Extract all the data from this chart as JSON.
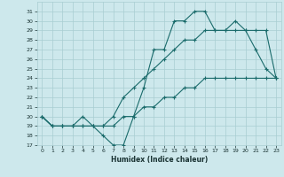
{
  "xlabel": "Humidex (Indice chaleur)",
  "xlim": [
    -0.5,
    23.5
  ],
  "ylim": [
    17,
    32
  ],
  "yticks": [
    17,
    18,
    19,
    20,
    21,
    22,
    23,
    24,
    25,
    26,
    27,
    28,
    29,
    30,
    31
  ],
  "xticks": [
    0,
    1,
    2,
    3,
    4,
    5,
    6,
    7,
    8,
    9,
    10,
    11,
    12,
    13,
    14,
    15,
    16,
    17,
    18,
    19,
    20,
    21,
    22,
    23
  ],
  "bg_color": "#cde8ec",
  "grid_color": "#a8cdd2",
  "line_color": "#1a6b6b",
  "line1_x": [
    0,
    1,
    2,
    3,
    4,
    5,
    6,
    7,
    8,
    9,
    10,
    11,
    12,
    13,
    14,
    15,
    16,
    17,
    18,
    19,
    20,
    21,
    22,
    23
  ],
  "line1_y": [
    20,
    19,
    19,
    19,
    20,
    19,
    18,
    17,
    17,
    20,
    23,
    27,
    27,
    30,
    30,
    31,
    31,
    29,
    29,
    30,
    29,
    27,
    25,
    24
  ],
  "line2_x": [
    0,
    1,
    2,
    3,
    4,
    5,
    6,
    7,
    8,
    9,
    10,
    11,
    12,
    13,
    14,
    15,
    16,
    17,
    18,
    19,
    20,
    21,
    22,
    23
  ],
  "line2_y": [
    20,
    19,
    19,
    19,
    19,
    19,
    19,
    20,
    22,
    23,
    24,
    25,
    26,
    27,
    28,
    28,
    29,
    29,
    29,
    29,
    29,
    29,
    29,
    24
  ],
  "line3_x": [
    0,
    1,
    2,
    3,
    4,
    5,
    6,
    7,
    8,
    9,
    10,
    11,
    12,
    13,
    14,
    15,
    16,
    17,
    18,
    19,
    20,
    21,
    22,
    23
  ],
  "line3_y": [
    20,
    19,
    19,
    19,
    19,
    19,
    19,
    19,
    20,
    20,
    21,
    21,
    22,
    22,
    23,
    23,
    24,
    24,
    24,
    24,
    24,
    24,
    24,
    24
  ],
  "marker": "+",
  "markersize": 3,
  "linewidth": 0.8
}
